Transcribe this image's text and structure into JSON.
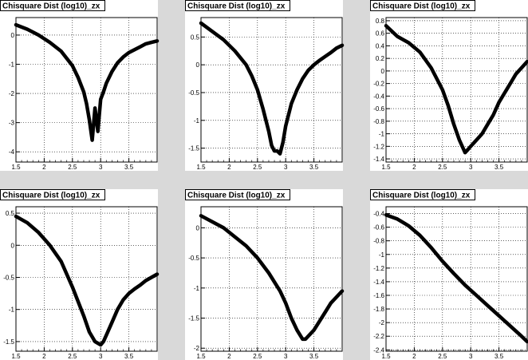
{
  "chart_data": [
    {
      "type": "line",
      "title": "Chisquare Dist (log10)_zx",
      "xlim": [
        1.5,
        4.0
      ],
      "ylim": [
        -4.35,
        0.6
      ],
      "xticks": [
        1.5,
        2,
        2.5,
        3,
        3.5
      ],
      "yticks": [
        0,
        -1,
        -2,
        -3,
        -4
      ],
      "grid": true,
      "series": [
        {
          "x": [
            1.5,
            1.7,
            1.9,
            2.1,
            2.3,
            2.5,
            2.6,
            2.7,
            2.75,
            2.8,
            2.85,
            2.9,
            2.95,
            3.0,
            3.05,
            3.1,
            3.2,
            3.3,
            3.4,
            3.5,
            3.6,
            3.7,
            3.8,
            3.9,
            4.0
          ],
          "y": [
            0.35,
            0.2,
            0.0,
            -0.25,
            -0.55,
            -1.05,
            -1.45,
            -1.95,
            -2.35,
            -2.9,
            -3.6,
            -2.5,
            -3.3,
            -2.2,
            -1.95,
            -1.65,
            -1.25,
            -0.95,
            -0.75,
            -0.6,
            -0.5,
            -0.4,
            -0.3,
            -0.25,
            -0.2
          ]
        }
      ]
    },
    {
      "type": "line",
      "title": "Chisquare Dist (log10)_zx",
      "xlim": [
        1.5,
        4.0
      ],
      "ylim": [
        -1.75,
        0.85
      ],
      "xticks": [
        1.5,
        2,
        2.5,
        3,
        3.5
      ],
      "yticks": [
        0.5,
        0,
        -0.5,
        -1,
        -1.5
      ],
      "grid": true,
      "series": [
        {
          "x": [
            1.5,
            1.7,
            1.9,
            2.1,
            2.3,
            2.4,
            2.5,
            2.6,
            2.7,
            2.75,
            2.8,
            2.85,
            2.9,
            2.95,
            3.0,
            3.1,
            3.2,
            3.3,
            3.4,
            3.5,
            3.6,
            3.7,
            3.8,
            3.9,
            4.0
          ],
          "y": [
            0.75,
            0.6,
            0.45,
            0.25,
            0.0,
            -0.2,
            -0.45,
            -0.8,
            -1.2,
            -1.45,
            -1.55,
            -1.55,
            -1.6,
            -1.4,
            -1.1,
            -0.7,
            -0.45,
            -0.25,
            -0.1,
            0.0,
            0.08,
            0.15,
            0.22,
            0.3,
            0.35
          ]
        }
      ]
    },
    {
      "type": "line",
      "title": "Chisquare Dist (log10)_zx",
      "xlim": [
        1.5,
        4.0
      ],
      "ylim": [
        -1.45,
        0.85
      ],
      "xticks": [
        1.5,
        2,
        2.5,
        3,
        3.5
      ],
      "yticks": [
        0.8,
        0.6,
        0.4,
        0.2,
        0,
        -0.2,
        -0.4,
        -0.6,
        -0.8,
        -1,
        -1.2,
        -1.4
      ],
      "grid": true,
      "series": [
        {
          "x": [
            1.5,
            1.7,
            1.9,
            2.1,
            2.3,
            2.5,
            2.6,
            2.7,
            2.8,
            2.9,
            2.95,
            3.0,
            3.1,
            3.2,
            3.3,
            3.4,
            3.5,
            3.6,
            3.7,
            3.8,
            3.9,
            4.0
          ],
          "y": [
            0.72,
            0.55,
            0.45,
            0.3,
            0.05,
            -0.3,
            -0.55,
            -0.85,
            -1.1,
            -1.3,
            -1.25,
            -1.2,
            -1.1,
            -1.0,
            -0.85,
            -0.7,
            -0.5,
            -0.35,
            -0.2,
            -0.05,
            0.05,
            0.15
          ]
        }
      ]
    },
    {
      "type": "line",
      "title": "Chisquare Dist (log10)_zx",
      "xlim": [
        1.5,
        4.0
      ],
      "ylim": [
        -1.65,
        0.6
      ],
      "xticks": [
        1.5,
        2,
        2.5,
        3,
        3.5
      ],
      "yticks": [
        0.5,
        0,
        -0.5,
        -1,
        -1.5
      ],
      "grid": true,
      "series": [
        {
          "x": [
            1.5,
            1.7,
            1.9,
            2.1,
            2.3,
            2.5,
            2.7,
            2.8,
            2.9,
            3.0,
            3.05,
            3.1,
            3.2,
            3.3,
            3.4,
            3.5,
            3.6,
            3.7,
            3.8,
            3.9,
            4.0
          ],
          "y": [
            0.45,
            0.35,
            0.2,
            0.0,
            -0.25,
            -0.65,
            -1.1,
            -1.35,
            -1.5,
            -1.55,
            -1.5,
            -1.4,
            -1.2,
            -1.0,
            -0.85,
            -0.75,
            -0.68,
            -0.62,
            -0.55,
            -0.5,
            -0.45
          ]
        }
      ]
    },
    {
      "type": "line",
      "title": "Chisquare Dist (log10)_zx",
      "xlim": [
        1.5,
        4.0
      ],
      "ylim": [
        -2.05,
        0.35
      ],
      "xticks": [
        1.5,
        2,
        2.5,
        3,
        3.5
      ],
      "yticks": [
        0,
        -0.5,
        -1,
        -1.5,
        -2
      ],
      "grid": true,
      "series": [
        {
          "x": [
            1.5,
            1.7,
            1.9,
            2.1,
            2.3,
            2.5,
            2.7,
            2.9,
            3.0,
            3.1,
            3.2,
            3.3,
            3.35,
            3.4,
            3.5,
            3.6,
            3.7,
            3.8,
            3.9,
            4.0
          ],
          "y": [
            0.2,
            0.1,
            0.0,
            -0.15,
            -0.3,
            -0.5,
            -0.75,
            -1.05,
            -1.25,
            -1.5,
            -1.7,
            -1.85,
            -1.85,
            -1.8,
            -1.7,
            -1.55,
            -1.4,
            -1.25,
            -1.15,
            -1.05
          ]
        }
      ]
    },
    {
      "type": "line",
      "title": "Chisquare Dist (log10)_zx",
      "xlim": [
        1.5,
        4.0
      ],
      "ylim": [
        -2.42,
        -0.3
      ],
      "xticks": [
        1.5,
        2,
        2.5,
        3,
        3.5
      ],
      "yticks": [
        -0.4,
        -0.6,
        -0.8,
        -1,
        -1.2,
        -1.4,
        -1.6,
        -1.8,
        -2,
        -2.2,
        -2.4
      ],
      "grid": true,
      "series": [
        {
          "x": [
            1.5,
            1.7,
            1.9,
            2.1,
            2.3,
            2.5,
            2.7,
            2.9,
            3.1,
            3.3,
            3.5,
            3.7,
            3.9,
            4.0
          ],
          "y": [
            -0.42,
            -0.48,
            -0.58,
            -0.72,
            -0.9,
            -1.1,
            -1.28,
            -1.45,
            -1.6,
            -1.75,
            -1.9,
            -2.05,
            -2.2,
            -2.28
          ]
        }
      ]
    }
  ]
}
